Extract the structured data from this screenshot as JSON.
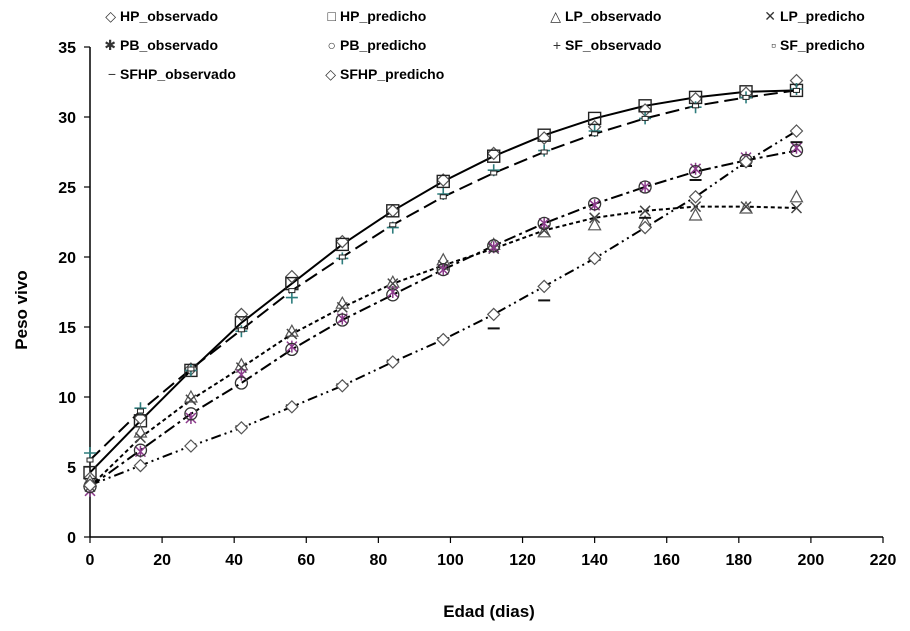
{
  "chart_data": {
    "type": "scatter",
    "xlabel": "Edad (dias)",
    "ylabel": "Peso vivo",
    "xlim": [
      0,
      220
    ],
    "ylim": [
      0,
      35
    ],
    "xticks": [
      0,
      20,
      40,
      60,
      80,
      100,
      120,
      140,
      160,
      180,
      200,
      220
    ],
    "yticks": [
      0,
      5,
      10,
      15,
      20,
      25,
      30,
      35
    ],
    "grid": false,
    "legend_position": "top",
    "legend": [
      {
        "label": "HP_observado",
        "symbol": "◇"
      },
      {
        "label": "HP_predicho",
        "symbol": "□"
      },
      {
        "label": "LP_observado",
        "symbol": "△"
      },
      {
        "label": "LP_predicho",
        "symbol": "✕"
      },
      {
        "label": "PB_observado",
        "symbol": "✱"
      },
      {
        "label": "PB_predicho",
        "symbol": "○"
      },
      {
        "label": "SF_observado",
        "symbol": "+"
      },
      {
        "label": "SF_predicho",
        "symbol": "▫"
      },
      {
        "label": "SFHP_observado",
        "symbol": "−"
      },
      {
        "label": "SFHP_predicho",
        "symbol": "◇"
      }
    ],
    "series": [
      {
        "name": "HP_observado",
        "marker": "diamond",
        "color": "#555555",
        "x": [
          0,
          14,
          28,
          42,
          56,
          70,
          84,
          98,
          112,
          126,
          140,
          154,
          168,
          182,
          196
        ],
        "y": [
          4.2,
          8.5,
          12.0,
          15.9,
          18.6,
          21.1,
          23.3,
          25.5,
          27.4,
          28.5,
          29.3,
          30.5,
          31.3,
          31.7,
          32.6
        ]
      },
      {
        "name": "HP_predicho",
        "marker": "square",
        "color": "#222222",
        "x": [
          0,
          14,
          28,
          42,
          56,
          70,
          84,
          98,
          112,
          126,
          140,
          154,
          168,
          182,
          196
        ],
        "y": [
          4.6,
          8.3,
          11.9,
          15.3,
          18.1,
          20.9,
          23.3,
          25.4,
          27.2,
          28.7,
          29.9,
          30.8,
          31.4,
          31.8,
          31.9
        ]
      },
      {
        "name": "LP_observado",
        "marker": "triangle",
        "color": "#555555",
        "x": [
          0,
          14,
          28,
          42,
          56,
          70,
          84,
          98,
          112,
          126,
          140,
          154,
          168,
          182,
          196
        ],
        "y": [
          4.0,
          7.5,
          10.0,
          12.3,
          14.7,
          16.7,
          18.2,
          19.8,
          20.9,
          21.8,
          22.3,
          22.5,
          23.0,
          23.5,
          24.3
        ]
      },
      {
        "name": "LP_predicho",
        "marker": "x",
        "color": "#444444",
        "x": [
          0,
          14,
          28,
          42,
          56,
          70,
          84,
          98,
          112,
          126,
          140,
          154,
          168,
          182,
          196
        ],
        "y": [
          3.6,
          7.1,
          9.8,
          12.1,
          14.5,
          16.4,
          18.1,
          19.4,
          20.6,
          21.9,
          22.8,
          23.3,
          23.6,
          23.6,
          23.5
        ]
      },
      {
        "name": "PB_observado",
        "marker": "asterisk",
        "color": "#8B3A8B",
        "x": [
          0,
          14,
          28,
          42,
          56,
          70,
          84,
          98,
          112,
          126,
          140,
          154,
          168,
          182,
          196
        ],
        "y": [
          3.3,
          6.1,
          8.5,
          11.6,
          13.6,
          15.6,
          17.5,
          19.1,
          20.7,
          22.4,
          23.7,
          25.0,
          26.3,
          27.1,
          27.8
        ]
      },
      {
        "name": "PB_predicho",
        "marker": "circle",
        "color": "#333333",
        "x": [
          0,
          14,
          28,
          42,
          56,
          70,
          84,
          98,
          112,
          126,
          140,
          154,
          168,
          182,
          196
        ],
        "y": [
          3.6,
          6.2,
          8.8,
          11.0,
          13.4,
          15.5,
          17.3,
          19.1,
          20.8,
          22.4,
          23.8,
          25.0,
          26.1,
          26.9,
          27.6
        ]
      },
      {
        "name": "SF_observado",
        "marker": "plus",
        "color": "#2E7D7D",
        "x": [
          0,
          14,
          28,
          42,
          56,
          70,
          84,
          98,
          112,
          126,
          140,
          154,
          168,
          182,
          196
        ],
        "y": [
          6.0,
          9.2,
          11.9,
          14.7,
          17.1,
          19.9,
          22.1,
          24.5,
          26.2,
          27.6,
          29.0,
          29.9,
          30.7,
          31.4,
          32.0
        ]
      },
      {
        "name": "SF_predicho",
        "marker": "smallsquare",
        "color": "#222222",
        "x": [
          0,
          14,
          28,
          42,
          56,
          70,
          84,
          98,
          112,
          126,
          140,
          154,
          168,
          182,
          196
        ],
        "y": [
          5.5,
          9.0,
          12.0,
          14.8,
          17.6,
          20.0,
          22.3,
          24.3,
          26.0,
          27.5,
          28.8,
          29.9,
          30.8,
          31.4,
          31.9
        ]
      },
      {
        "name": "SFHP_observado",
        "marker": "dash",
        "color": "#111111",
        "x": [
          0,
          14,
          28,
          42,
          56,
          70,
          84,
          98,
          112,
          126,
          140,
          154,
          168,
          182,
          196
        ],
        "y": [
          3.7,
          5.1,
          6.5,
          7.9,
          9.4,
          10.9,
          12.6,
          14.2,
          14.9,
          16.9,
          19.8,
          22.8,
          25.5,
          26.5,
          28.2
        ]
      },
      {
        "name": "SFHP_predicho",
        "marker": "diamond",
        "color": "#555555",
        "x": [
          0,
          14,
          28,
          42,
          56,
          70,
          84,
          98,
          112,
          126,
          140,
          154,
          168,
          182,
          196
        ],
        "y": [
          3.7,
          5.1,
          6.5,
          7.8,
          9.3,
          10.8,
          12.5,
          14.1,
          15.9,
          17.9,
          19.9,
          22.1,
          24.3,
          26.8,
          29.0
        ]
      }
    ],
    "lines": [
      {
        "name": "HP_predicho",
        "dash": "",
        "x": [
          0,
          14,
          28,
          42,
          56,
          70,
          84,
          98,
          112,
          126,
          140,
          154,
          168,
          182,
          196
        ],
        "y": [
          4.6,
          8.3,
          11.9,
          15.3,
          18.1,
          20.9,
          23.3,
          25.4,
          27.2,
          28.7,
          29.9,
          30.8,
          31.4,
          31.8,
          31.9
        ]
      },
      {
        "name": "SF_predicho",
        "dash": "14,6",
        "x": [
          0,
          14,
          28,
          42,
          56,
          70,
          84,
          98,
          112,
          126,
          140,
          154,
          168,
          182,
          196
        ],
        "y": [
          5.5,
          9.0,
          12.0,
          14.8,
          17.6,
          20.0,
          22.3,
          24.3,
          26.0,
          27.5,
          28.8,
          29.9,
          30.8,
          31.4,
          31.9
        ]
      },
      {
        "name": "LP_predicho",
        "dash": "4,3",
        "x": [
          0,
          14,
          28,
          42,
          56,
          70,
          84,
          98,
          112,
          126,
          140,
          154,
          168,
          182,
          196
        ],
        "y": [
          3.6,
          7.1,
          9.8,
          12.1,
          14.5,
          16.4,
          18.1,
          19.4,
          20.6,
          21.9,
          22.8,
          23.3,
          23.6,
          23.6,
          23.5
        ]
      },
      {
        "name": "PB_predicho",
        "dash": "12,4,3,4",
        "x": [
          0,
          14,
          28,
          42,
          56,
          70,
          84,
          98,
          112,
          126,
          140,
          154,
          168,
          182,
          196
        ],
        "y": [
          3.6,
          6.2,
          8.8,
          11.0,
          13.4,
          15.5,
          17.3,
          19.1,
          20.8,
          22.4,
          23.8,
          25.0,
          26.1,
          26.9,
          27.6
        ]
      },
      {
        "name": "SFHP_predicho",
        "dash": "10,4,2,4,2,4",
        "x": [
          0,
          14,
          28,
          42,
          56,
          70,
          84,
          98,
          112,
          126,
          140,
          154,
          168,
          182,
          196
        ],
        "y": [
          3.7,
          5.1,
          6.5,
          7.8,
          9.3,
          10.8,
          12.5,
          14.1,
          15.9,
          17.9,
          19.9,
          22.1,
          24.3,
          26.8,
          29.0
        ]
      }
    ]
  }
}
